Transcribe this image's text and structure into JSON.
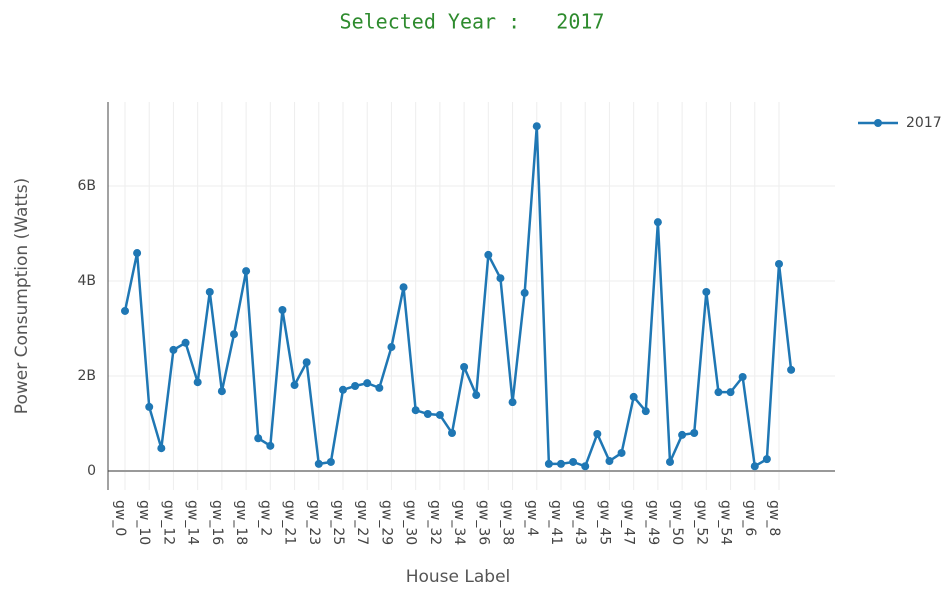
{
  "chart_data": {
    "type": "line",
    "title": "Selected Year :   2017",
    "x_label": "House Label",
    "y_label": "Power Consumption (Watts)",
    "categories": [
      "gw_0",
      null,
      "gw_10",
      null,
      "gw_12",
      null,
      "gw_14",
      null,
      "gw_16",
      null,
      "gw_18",
      null,
      "gw_2",
      null,
      "gw_21",
      null,
      "gw_23",
      null,
      "gw_25",
      null,
      "gw_27",
      null,
      "gw_29",
      null,
      "gw_30",
      null,
      "gw_32",
      null,
      "gw_34",
      null,
      "gw_36",
      null,
      "gw_38",
      null,
      "gw_4",
      null,
      "gw_41",
      null,
      "gw_43",
      null,
      "gw_45",
      null,
      "gw_47",
      null,
      "gw_49",
      null,
      "gw_50",
      null,
      "gw_52",
      null,
      "gw_54",
      null,
      "gw_6",
      null,
      "gw_8",
      null
    ],
    "series": [
      {
        "name": "2017",
        "color": "#1f77b4",
        "values": [
          3370000000,
          4590000000,
          1350000000,
          480000000,
          2550000000,
          2700000000,
          1870000000,
          3770000000,
          1680000000,
          2880000000,
          4210000000,
          690000000,
          530000000,
          3390000000,
          1810000000,
          2290000000,
          150000000,
          190000000,
          1710000000,
          1790000000,
          1850000000,
          1750000000,
          2610000000,
          3870000000,
          1280000000,
          1200000000,
          1180000000,
          800000000,
          2190000000,
          1600000000,
          4550000000,
          4060000000,
          1450000000,
          3750000000,
          7260000000,
          150000000,
          150000000,
          190000000,
          100000000,
          780000000,
          210000000,
          380000000,
          1560000000,
          1260000000,
          5240000000,
          190000000,
          760000000,
          800000000,
          3770000000,
          1660000000,
          1660000000,
          1980000000,
          100000000,
          250000000,
          4360000000,
          2130000000
        ]
      }
    ],
    "ylim": [
      -400000000,
      7770000000
    ],
    "yticks": [
      {
        "value": 0,
        "label": "0"
      },
      {
        "value": 2000000000,
        "label": "2B"
      },
      {
        "value": 4000000000,
        "label": "4B"
      },
      {
        "value": 6000000000,
        "label": "6B"
      }
    ],
    "grid": true,
    "legend": "top-right"
  }
}
